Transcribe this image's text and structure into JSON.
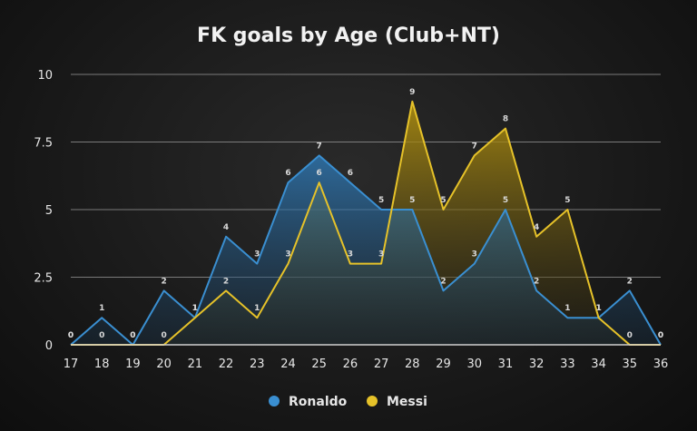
{
  "chart_data": {
    "type": "area",
    "title": "FK goals by Age (Club+NT)",
    "xlabel": "",
    "ylabel": "",
    "x": [
      17,
      18,
      19,
      20,
      21,
      22,
      23,
      24,
      25,
      26,
      27,
      28,
      29,
      30,
      31,
      32,
      33,
      34,
      35,
      36
    ],
    "yticks": [
      "0",
      "2.5",
      "5",
      "7.5",
      "10"
    ],
    "ylim": [
      0,
      10
    ],
    "grid": true,
    "legend_position": "bottom",
    "series": [
      {
        "name": "Ronaldo",
        "color": "#3a8fd1",
        "values": [
          0,
          1,
          0,
          2,
          1,
          4,
          3,
          6,
          7,
          6,
          5,
          5,
          2,
          3,
          5,
          2,
          1,
          1,
          2,
          0
        ]
      },
      {
        "name": "Messi",
        "color": "#e6c229",
        "values": [
          0,
          0,
          0,
          0,
          1,
          2,
          1,
          3,
          6,
          3,
          3,
          9,
          5,
          7,
          8,
          4,
          5,
          1,
          0,
          0
        ]
      }
    ]
  }
}
